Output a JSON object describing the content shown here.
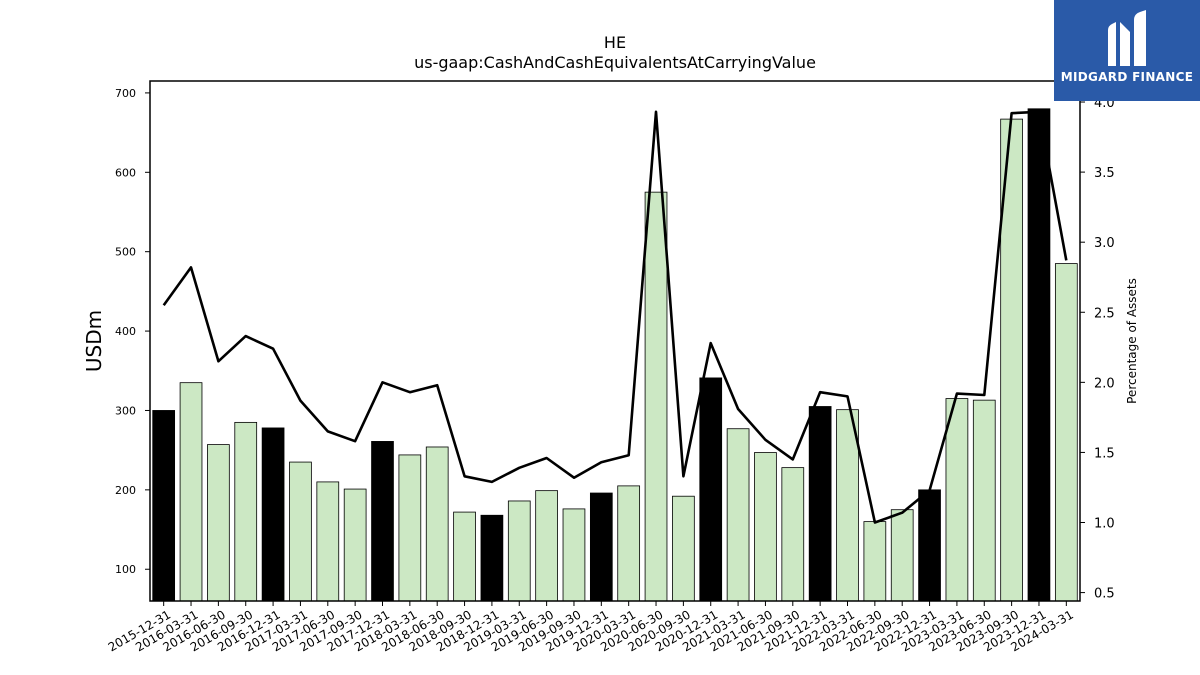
{
  "logo": {
    "text": "MIDGARD FINANCE",
    "color": "#2a5aa8"
  },
  "chart_data": {
    "type": "bar",
    "title": "HE",
    "subtitle": "us-gaap:CashAndCashEquivalentsAtCarryingValue",
    "ylabel": "USDm",
    "y2label": "Percentage of Assets",
    "ylim": [
      60,
      715
    ],
    "y2lim": [
      0.44,
      4.15
    ],
    "yticks": [
      100,
      200,
      300,
      400,
      500,
      600,
      700
    ],
    "y2ticks": [
      0.5,
      1.0,
      1.5,
      2.0,
      2.5,
      3.0,
      3.5,
      4.0
    ],
    "y2ticklabels": [
      "0.5",
      "1.0",
      "1.5",
      "2.0",
      "2.5",
      "3.0",
      "3.5",
      "4.0"
    ],
    "categories": [
      "2015-12-31",
      "2016-03-31",
      "2016-06-30",
      "2016-09-30",
      "2016-12-31",
      "2017-03-31",
      "2017-06-30",
      "2017-09-30",
      "2017-12-31",
      "2018-03-31",
      "2018-06-30",
      "2018-09-30",
      "2018-12-31",
      "2019-03-31",
      "2019-06-30",
      "2019-09-30",
      "2019-12-31",
      "2020-03-31",
      "2020-06-30",
      "2020-09-30",
      "2020-12-31",
      "2021-03-31",
      "2021-06-30",
      "2021-09-30",
      "2021-12-31",
      "2022-03-31",
      "2022-06-30",
      "2022-09-30",
      "2022-12-31",
      "2023-03-31",
      "2023-06-30",
      "2023-09-30",
      "2023-12-31",
      "2024-03-31"
    ],
    "series": [
      {
        "values": [
          300,
          335,
          257,
          285,
          278,
          235,
          210,
          201,
          261,
          244,
          254,
          172,
          168,
          186,
          199,
          176,
          196,
          205,
          575,
          192,
          341,
          277,
          247,
          228,
          305,
          301,
          160,
          175,
          200,
          315,
          313,
          667,
          680,
          485
        ]
      },
      {
        "axis": "right",
        "type": "line",
        "values": [
          2.55,
          2.82,
          2.15,
          2.33,
          2.24,
          1.87,
          1.65,
          1.58,
          2.0,
          1.93,
          1.98,
          1.33,
          1.29,
          1.39,
          1.46,
          1.32,
          1.43,
          1.48,
          3.93,
          1.33,
          2.28,
          1.81,
          1.59,
          1.45,
          1.93,
          1.9,
          1.0,
          1.07,
          1.23,
          1.92,
          1.91,
          3.92,
          3.93,
          2.87
        ]
      }
    ],
    "year_end_color": "#000000",
    "quarter_color": "#cce8c4",
    "line_color": "#000000",
    "grid": false
  }
}
